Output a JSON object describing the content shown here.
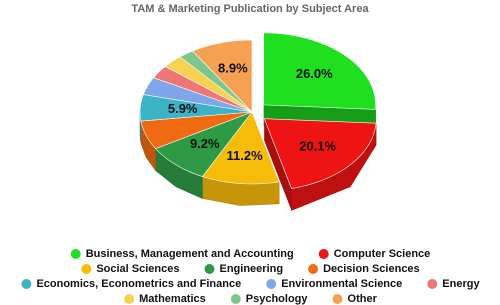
{
  "chart_data": {
    "type": "pie",
    "title": "TAM & Marketing Publication by Subject Area",
    "categories": [
      "Business, Management and Accounting",
      "Computer Science",
      "Social Sciences",
      "Engineering",
      "Decision Sciences",
      "Economics, Econometrics and Finance",
      "Environmental Science",
      "Energy",
      "Mathematics",
      "Psychology",
      "Other"
    ],
    "values": [
      26.0,
      20.1,
      11.2,
      9.2,
      6.5,
      5.9,
      4.0,
      3.0,
      3.0,
      2.2,
      8.9
    ],
    "value_labels": [
      "26.0%",
      "20.1%",
      "11.2%",
      "9.2%",
      null,
      "5.9%",
      null,
      null,
      null,
      null,
      "8.9%"
    ],
    "colors": [
      "#1fe01f",
      "#ee1414",
      "#f7bb0a",
      "#2e9a46",
      "#f06a12",
      "#3cb4c6",
      "#7ea6ea",
      "#f07676",
      "#f6d24e",
      "#7fc68c",
      "#f6a052"
    ],
    "explode": [
      true,
      true,
      false,
      false,
      false,
      false,
      false,
      false,
      false,
      false,
      false
    ]
  }
}
